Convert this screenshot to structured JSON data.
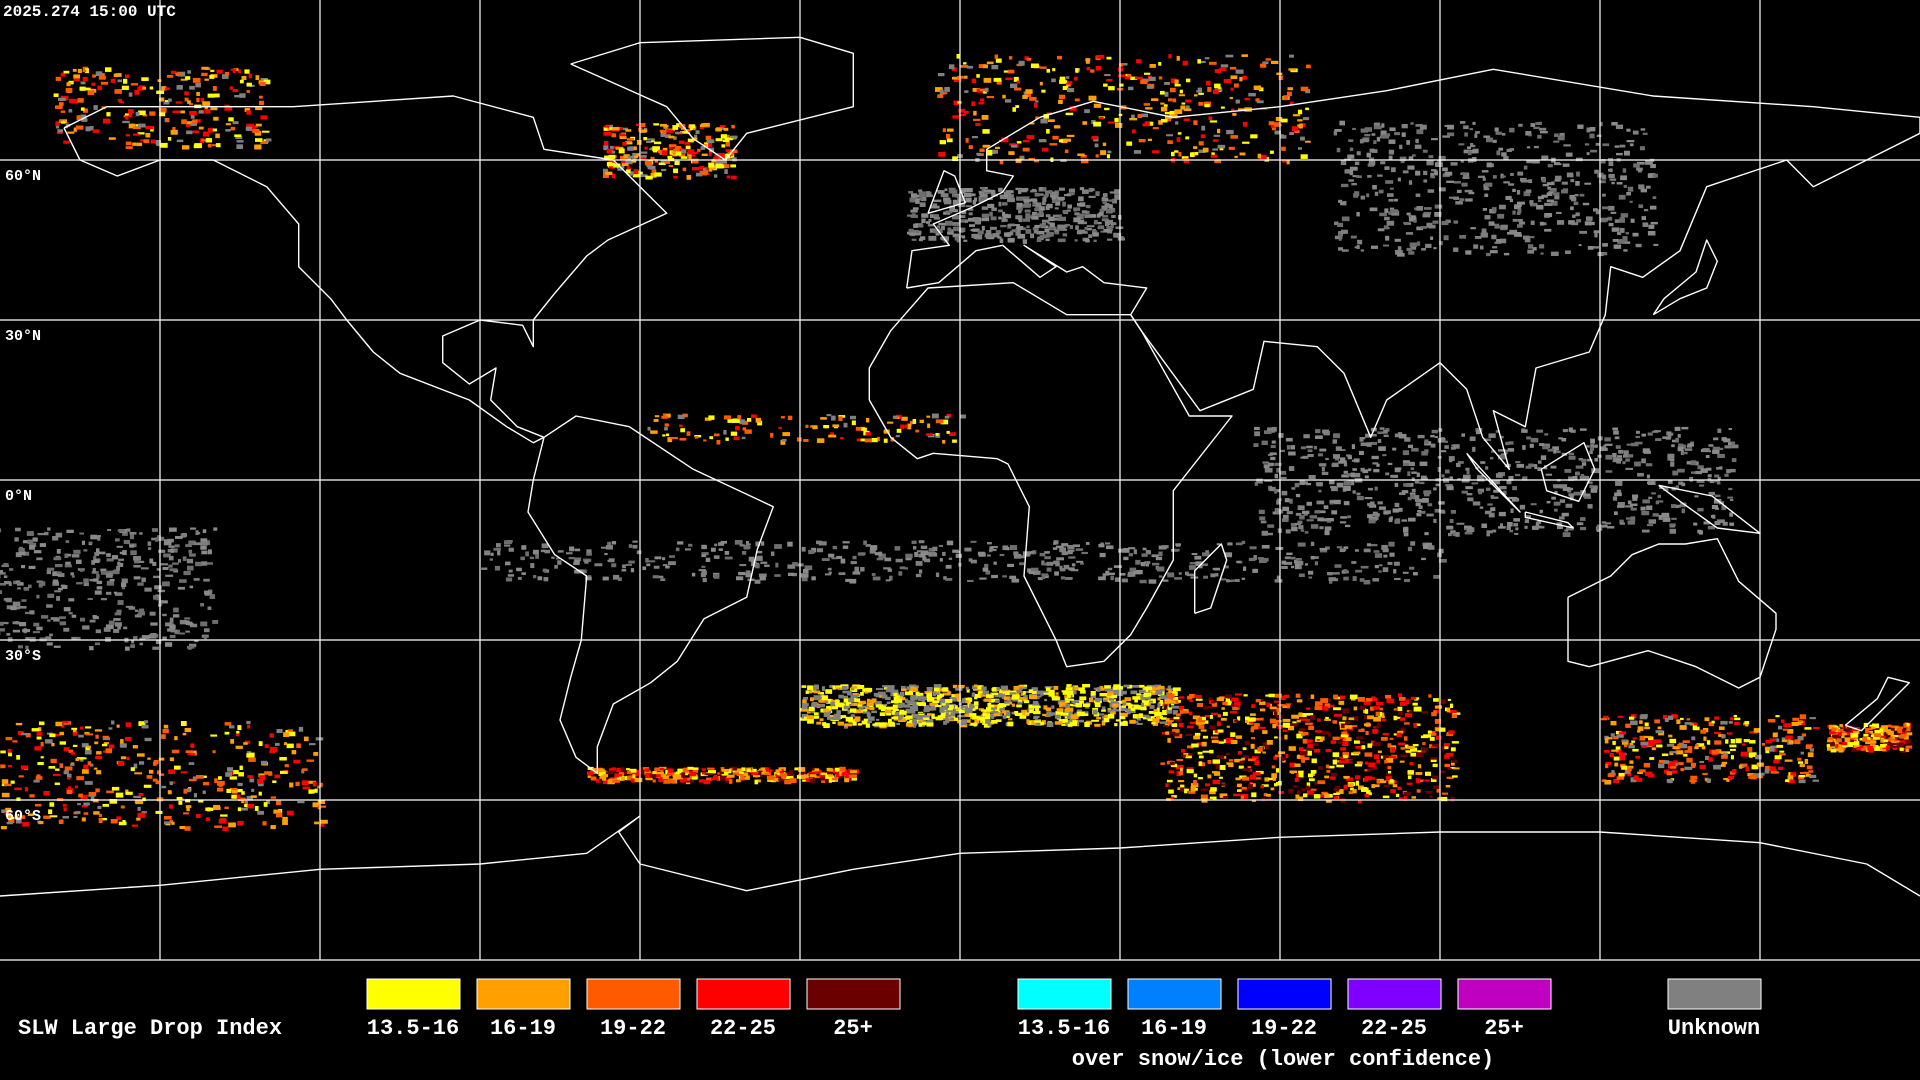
{
  "timestamp": "2025.274 15:00 UTC",
  "latitude_labels": [
    "60°N",
    "30°N",
    "0°N",
    "30°S",
    "60°S"
  ],
  "legend": {
    "title": "SLW Large Drop Index",
    "groups": [
      {
        "items": [
          {
            "label": "13.5-16",
            "color": "#ffff00"
          },
          {
            "label": "16-19",
            "color": "#ffa000"
          },
          {
            "label": "19-22",
            "color": "#ff5a00"
          },
          {
            "label": "22-25",
            "color": "#ff0000"
          },
          {
            "label": "25+",
            "color": "#6a0000"
          }
        ]
      },
      {
        "items": [
          {
            "label": "13.5-16",
            "color": "#00ffff"
          },
          {
            "label": "16-19",
            "color": "#0080ff"
          },
          {
            "label": "19-22",
            "color": "#0000ff"
          },
          {
            "label": "22-25",
            "color": "#7f00ff"
          },
          {
            "label": "25+",
            "color": "#c000c0"
          }
        ],
        "note": "over snow/ice (lower confidence)"
      },
      {
        "items": [
          {
            "label": "Unknown",
            "color": "#808080"
          }
        ]
      }
    ]
  }
}
